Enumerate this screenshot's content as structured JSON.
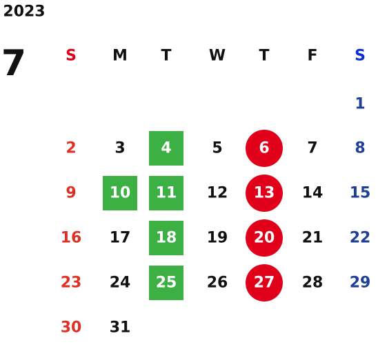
{
  "year": "2023",
  "month": "7",
  "weekdays": [
    "S",
    "M",
    "T",
    "W",
    "T",
    "F",
    "S"
  ],
  "weeks": [
    [
      null,
      null,
      null,
      null,
      null,
      null,
      1
    ],
    [
      2,
      3,
      4,
      5,
      6,
      7,
      8
    ],
    [
      9,
      10,
      11,
      12,
      13,
      14,
      15
    ],
    [
      16,
      17,
      18,
      19,
      20,
      21,
      22
    ],
    [
      23,
      24,
      25,
      26,
      27,
      28,
      29
    ],
    [
      30,
      31,
      null,
      null,
      null,
      null,
      null
    ]
  ],
  "green_days": [
    4,
    10,
    11,
    18,
    25
  ],
  "red_days": [
    6,
    13,
    20,
    27
  ]
}
